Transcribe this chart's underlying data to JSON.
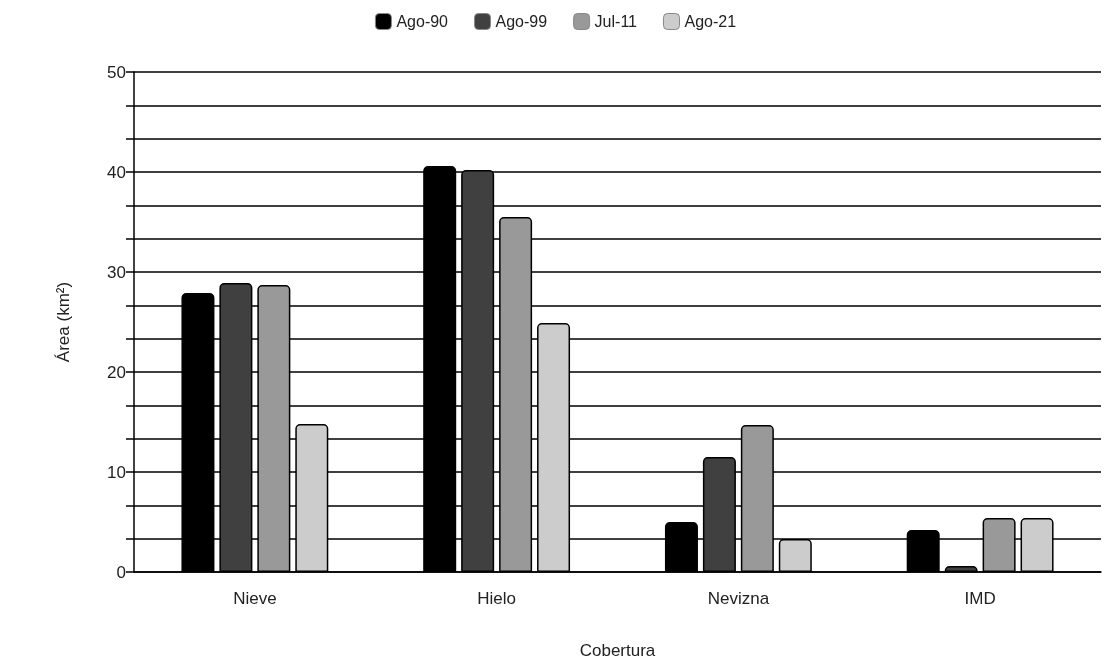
{
  "chart_data": {
    "type": "bar",
    "xlabel": "Cobertura",
    "ylabel": "Área (km²)",
    "categories": [
      "Nieve",
      "Hielo",
      "Nevizna",
      "IMD"
    ],
    "series": [
      {
        "name": "Ago-90",
        "color": "#000000",
        "values": [
          27.9,
          40.6,
          5.0,
          4.2
        ]
      },
      {
        "name": "Ago-99",
        "color": "#404040",
        "values": [
          28.9,
          40.2,
          11.5,
          0.6
        ]
      },
      {
        "name": "Jul-11",
        "color": "#999999",
        "values": [
          28.7,
          35.5,
          14.7,
          5.4
        ]
      },
      {
        "name": "Ago-21",
        "color": "#cccccc",
        "values": [
          14.8,
          24.9,
          3.3,
          5.4
        ]
      }
    ],
    "ylim": [
      0,
      50
    ],
    "yticks": [
      0,
      {
        "value": 3.333,
        "label": null
      },
      {
        "value": 6.667,
        "label": null
      },
      10,
      {
        "value": 13.333,
        "label": null
      },
      {
        "value": 16.667,
        "label": null
      },
      20,
      {
        "value": 23.333,
        "label": null
      },
      {
        "value": 26.667,
        "label": null
      },
      30,
      {
        "value": 33.333,
        "label": null
      },
      {
        "value": 36.667,
        "label": null
      },
      40,
      {
        "value": 43.333,
        "label": null
      },
      {
        "value": 46.667,
        "label": null
      },
      50
    ],
    "grid": "y",
    "legend": "top"
  }
}
